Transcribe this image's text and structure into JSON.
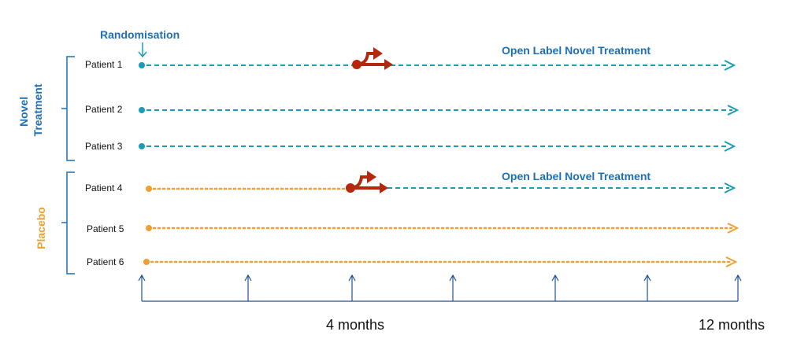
{
  "randomisation_label": "Randomisation",
  "groups": {
    "novel": "Novel Treatment",
    "placebo": "Placebo"
  },
  "patients": [
    {
      "label": "Patient 1",
      "arm": "novel",
      "switch_at_month": 4
    },
    {
      "label": "Patient 2",
      "arm": "novel",
      "switch_at_month": null
    },
    {
      "label": "Patient 3",
      "arm": "novel",
      "switch_at_month": null
    },
    {
      "label": "Patient 4",
      "arm": "placebo",
      "switch_at_month": 4
    },
    {
      "label": "Patient 5",
      "arm": "placebo",
      "switch_at_month": null
    },
    {
      "label": "Patient 6",
      "arm": "placebo",
      "switch_at_month": null
    }
  ],
  "switch_label": "Open Label Novel Treatment",
  "timeline": {
    "labels": [
      "4 months",
      "12 months"
    ]
  },
  "colors": {
    "novel": "#1a9cb5",
    "placebo": "#f0a030",
    "switch_icon": "#b5280e",
    "text_blue": "#1f6fb2",
    "axis": "#1f4f9a"
  }
}
